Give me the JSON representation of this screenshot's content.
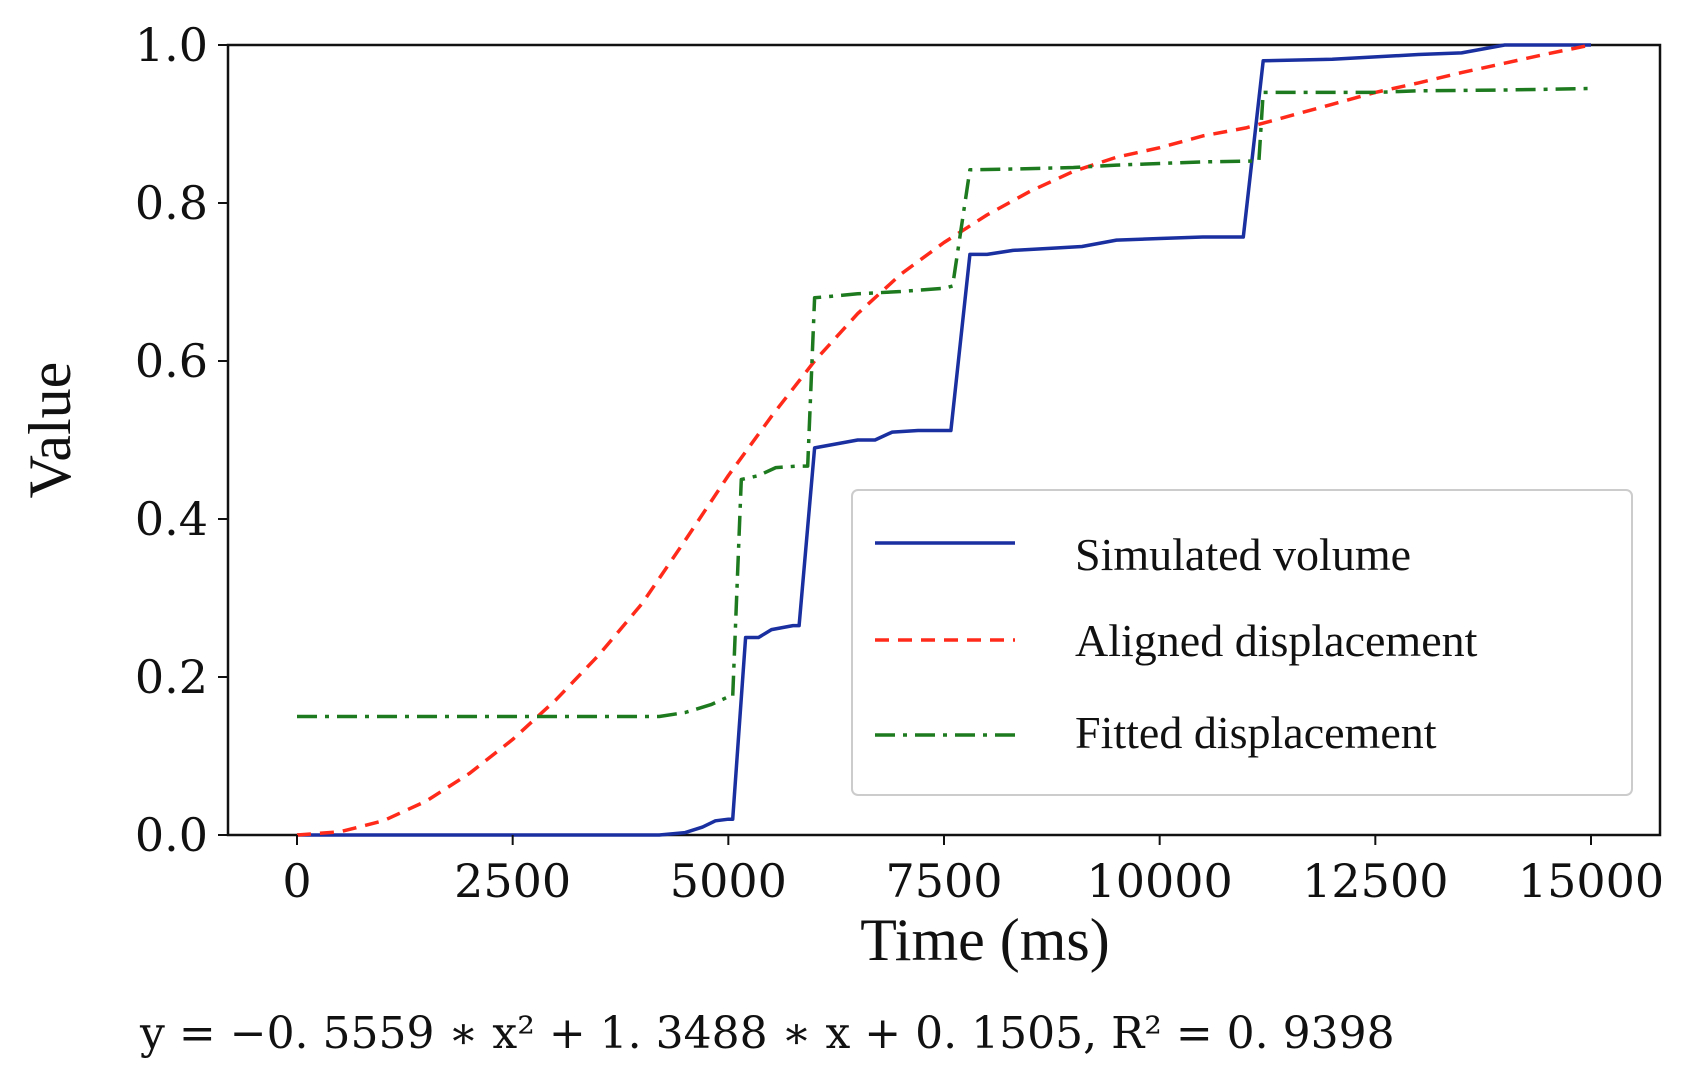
{
  "chart_data": {
    "type": "line",
    "title": "",
    "xlabel": "Time (ms)",
    "ylabel": "Value",
    "xlim": [
      -800,
      15800
    ],
    "ylim": [
      0,
      1.0
    ],
    "xticks": [
      0,
      2500,
      5000,
      7500,
      10000,
      12500,
      15000
    ],
    "xtick_labels": [
      "0",
      "2500",
      "5000",
      "7500",
      "10000",
      "12500",
      "15000"
    ],
    "yticks": [
      0,
      0.2,
      0.4,
      0.6,
      0.8,
      1.0
    ],
    "ytick_labels": [
      "0.0",
      "0.2",
      "0.4",
      "0.6",
      "0.8",
      "1.0"
    ],
    "grid": false,
    "legend_position": "lower-right",
    "series": [
      {
        "name": "Simulated volume",
        "style": "solid",
        "color": "#1a2fa0",
        "points": [
          [
            0,
            0.0
          ],
          [
            4200,
            0.0
          ],
          [
            4500,
            0.003
          ],
          [
            4700,
            0.01
          ],
          [
            4850,
            0.018
          ],
          [
            5000,
            0.02
          ],
          [
            5050,
            0.02
          ],
          [
            5200,
            0.25
          ],
          [
            5350,
            0.25
          ],
          [
            5500,
            0.26
          ],
          [
            5750,
            0.265
          ],
          [
            5820,
            0.265
          ],
          [
            6000,
            0.49
          ],
          [
            6500,
            0.5
          ],
          [
            6700,
            0.5
          ],
          [
            6900,
            0.51
          ],
          [
            7200,
            0.512
          ],
          [
            7580,
            0.512
          ],
          [
            7800,
            0.735
          ],
          [
            8000,
            0.735
          ],
          [
            8300,
            0.74
          ],
          [
            8800,
            0.743
          ],
          [
            9100,
            0.745
          ],
          [
            9500,
            0.753
          ],
          [
            10000,
            0.755
          ],
          [
            10500,
            0.757
          ],
          [
            10970,
            0.757
          ],
          [
            11200,
            0.98
          ],
          [
            12000,
            0.982
          ],
          [
            12500,
            0.985
          ],
          [
            13000,
            0.988
          ],
          [
            13500,
            0.99
          ],
          [
            14000,
            1.0
          ],
          [
            15000,
            1.0
          ]
        ]
      },
      {
        "name": "Aligned displacement",
        "style": "dashed",
        "color": "#ff2a1a",
        "points": [
          [
            0,
            0.0
          ],
          [
            500,
            0.004
          ],
          [
            1000,
            0.018
          ],
          [
            1500,
            0.043
          ],
          [
            2000,
            0.078
          ],
          [
            2500,
            0.121
          ],
          [
            3000,
            0.171
          ],
          [
            3500,
            0.228
          ],
          [
            4000,
            0.293
          ],
          [
            4500,
            0.373
          ],
          [
            5000,
            0.455
          ],
          [
            5500,
            0.53
          ],
          [
            6000,
            0.6
          ],
          [
            6500,
            0.66
          ],
          [
            7000,
            0.71
          ],
          [
            7500,
            0.75
          ],
          [
            8000,
            0.785
          ],
          [
            8500,
            0.815
          ],
          [
            9000,
            0.84
          ],
          [
            9500,
            0.858
          ],
          [
            10000,
            0.87
          ],
          [
            10500,
            0.885
          ],
          [
            11000,
            0.895
          ],
          [
            11500,
            0.91
          ],
          [
            12000,
            0.925
          ],
          [
            12500,
            0.94
          ],
          [
            13000,
            0.952
          ],
          [
            13500,
            0.965
          ],
          [
            14000,
            0.977
          ],
          [
            14500,
            0.989
          ],
          [
            15000,
            1.0
          ]
        ]
      },
      {
        "name": "Fitted displacement",
        "style": "dashdot",
        "color": "#1e7a1e",
        "points": [
          [
            0,
            0.15
          ],
          [
            4200,
            0.15
          ],
          [
            4500,
            0.155
          ],
          [
            4800,
            0.165
          ],
          [
            5000,
            0.175
          ],
          [
            5050,
            0.175
          ],
          [
            5150,
            0.45
          ],
          [
            5350,
            0.455
          ],
          [
            5550,
            0.465
          ],
          [
            5800,
            0.467
          ],
          [
            5920,
            0.467
          ],
          [
            6000,
            0.68
          ],
          [
            6500,
            0.685
          ],
          [
            7000,
            0.688
          ],
          [
            7500,
            0.692
          ],
          [
            7600,
            0.695
          ],
          [
            7800,
            0.842
          ],
          [
            8300,
            0.843
          ],
          [
            9000,
            0.845
          ],
          [
            9500,
            0.848
          ],
          [
            10000,
            0.85
          ],
          [
            10500,
            0.852
          ],
          [
            11000,
            0.853
          ],
          [
            11150,
            0.853
          ],
          [
            11200,
            0.94
          ],
          [
            12000,
            0.94
          ],
          [
            12500,
            0.94
          ],
          [
            13000,
            0.942
          ],
          [
            14000,
            0.943
          ],
          [
            15000,
            0.945
          ]
        ]
      }
    ],
    "annotation": "y = −0. 5559 ∗  x² + 1. 3488  ∗  x  + 0. 1505,   R² = 0. 9398"
  }
}
